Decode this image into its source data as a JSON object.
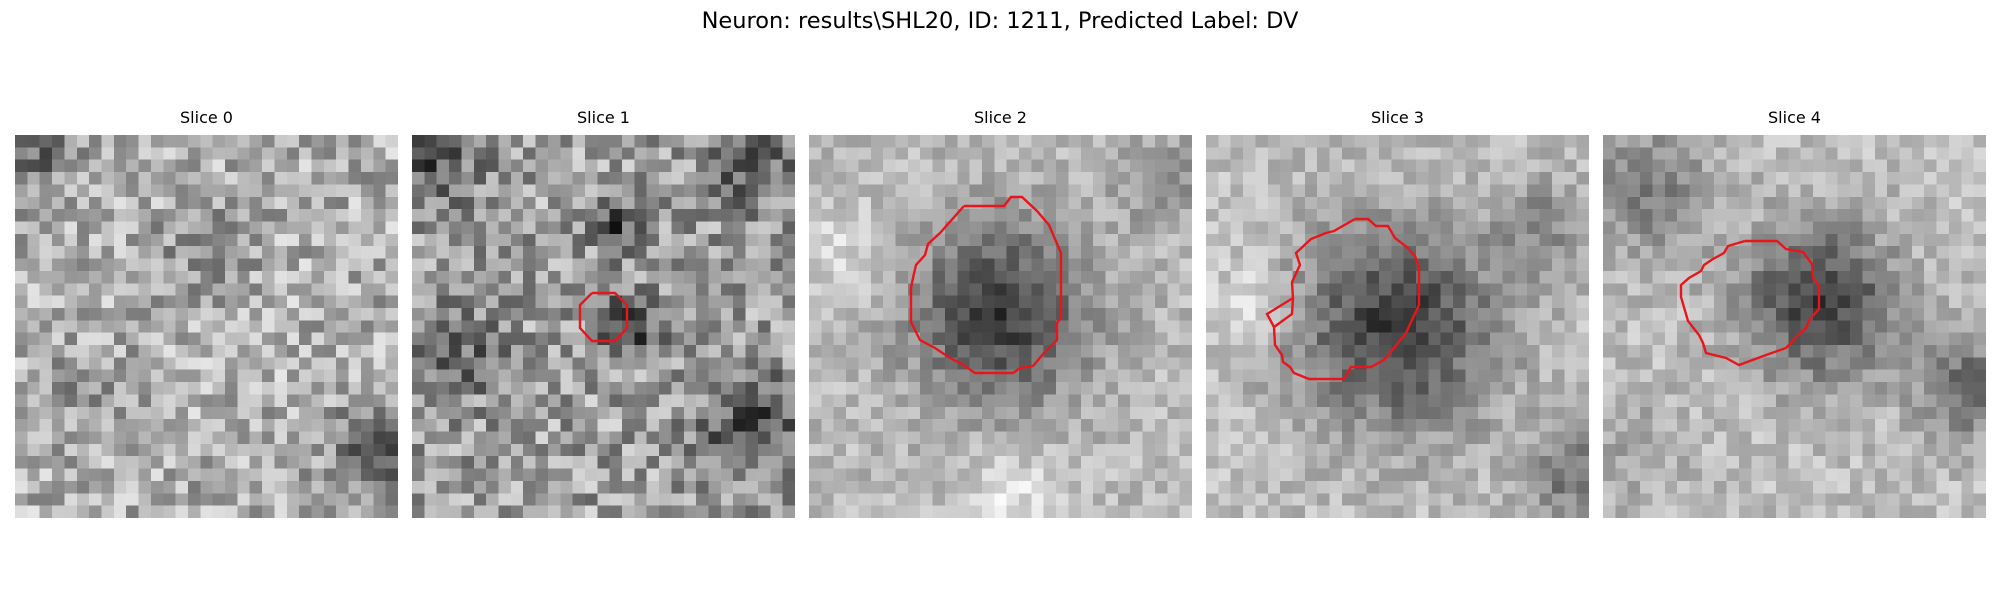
{
  "figure": {
    "title": "Neuron: results\\SHL20, ID: 1211, Predicted Label: DV",
    "outline_color": "#e8161c",
    "colormap": "grayscale",
    "slices": [
      {
        "title": "Slice 0",
        "has_outline": false
      },
      {
        "title": "Slice 1",
        "has_outline": true
      },
      {
        "title": "Slice 2",
        "has_outline": true
      },
      {
        "title": "Slice 3",
        "has_outline": true
      },
      {
        "title": "Slice 4",
        "has_outline": true
      }
    ]
  }
}
